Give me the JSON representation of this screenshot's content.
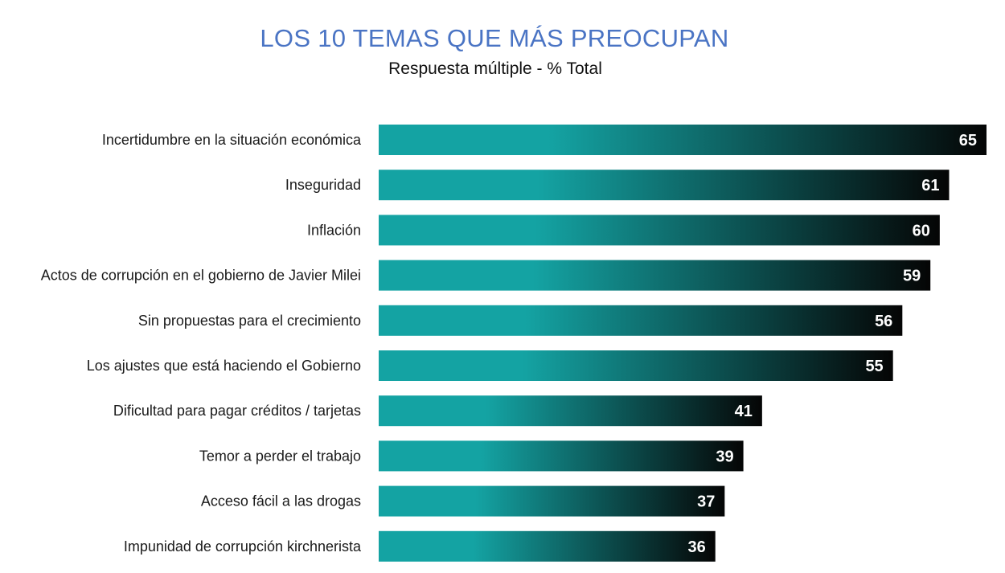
{
  "header": {
    "title": "LOS 10 TEMAS QUE MÁS PREOCUPAN",
    "subtitle": "Respuesta múltiple - % Total"
  },
  "colors": {
    "title": "#4a74c4",
    "bar_start": "#14a3a3",
    "bar_end": "#050505",
    "value_text": "#ffffff"
  },
  "chart_data": {
    "type": "bar",
    "orientation": "horizontal",
    "title": "LOS 10 TEMAS QUE MÁS PREOCUPAN",
    "subtitle": "Respuesta múltiple - % Total",
    "categories": [
      "Incertidumbre en la situación económica",
      "Inseguridad",
      "Inflación",
      "Actos de corrupción en el gobierno de Javier Milei",
      "Sin propuestas para el crecimiento",
      "Los ajustes que está haciendo el Gobierno",
      "Dificultad para pagar créditos / tarjetas",
      "Temor a perder el trabajo",
      "Acceso fácil a las drogas",
      "Impunidad de corrupción kirchnerista"
    ],
    "values": [
      65,
      61,
      60,
      59,
      56,
      55,
      41,
      39,
      37,
      36
    ],
    "data_labels": [
      "65",
      "61",
      "60",
      "59",
      "56",
      "55",
      "41",
      "39",
      "37",
      "36"
    ],
    "xlim": [
      0,
      65
    ],
    "grid": false,
    "legend": "none"
  }
}
